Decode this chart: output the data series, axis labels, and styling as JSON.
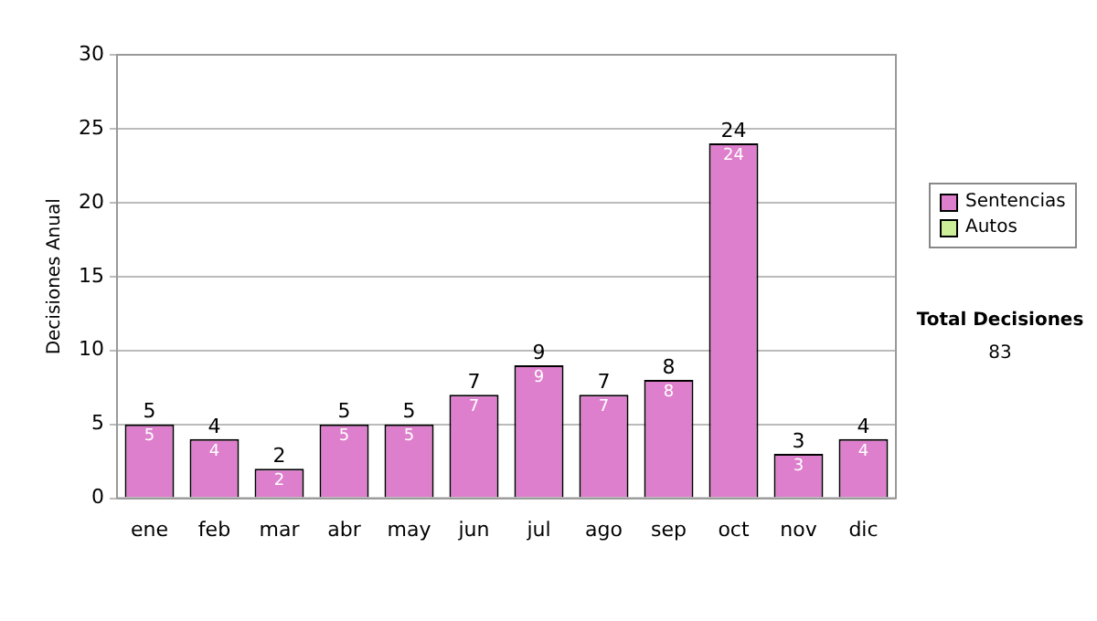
{
  "chart_data": {
    "type": "bar",
    "ylabel": "Decisiones Anual",
    "categories": [
      "ene",
      "feb",
      "mar",
      "abr",
      "may",
      "jun",
      "jul",
      "ago",
      "sep",
      "oct",
      "nov",
      "dic"
    ],
    "series": [
      {
        "name": "Sentencias",
        "color": "#dd7fcc",
        "values": [
          5,
          4,
          2,
          5,
          5,
          7,
          9,
          7,
          8,
          24,
          3,
          4
        ],
        "value_labels": [
          "5",
          "4",
          "2",
          "5",
          "5",
          "7",
          "9",
          "7",
          "8",
          "24",
          "3",
          "4"
        ]
      },
      {
        "name": "Autos",
        "color": "#ccee99",
        "values": [
          0,
          0,
          0,
          0,
          0,
          0,
          0,
          0,
          0,
          0,
          0,
          0
        ],
        "value_labels": [
          null,
          null,
          null,
          null,
          null,
          null,
          null,
          null,
          null,
          null,
          null,
          null
        ]
      }
    ],
    "stacked": true,
    "totals": [
      "5",
      "4",
      "2",
      "5",
      "5",
      "7",
      "9",
      "7",
      "8",
      "24",
      "3",
      "4"
    ],
    "ylim": [
      0,
      30
    ],
    "yticks": [
      0,
      5,
      10,
      15,
      20,
      25,
      30
    ],
    "grid": "y",
    "legend": "right",
    "annotations": [
      "Total Decisiones",
      "83"
    ]
  }
}
